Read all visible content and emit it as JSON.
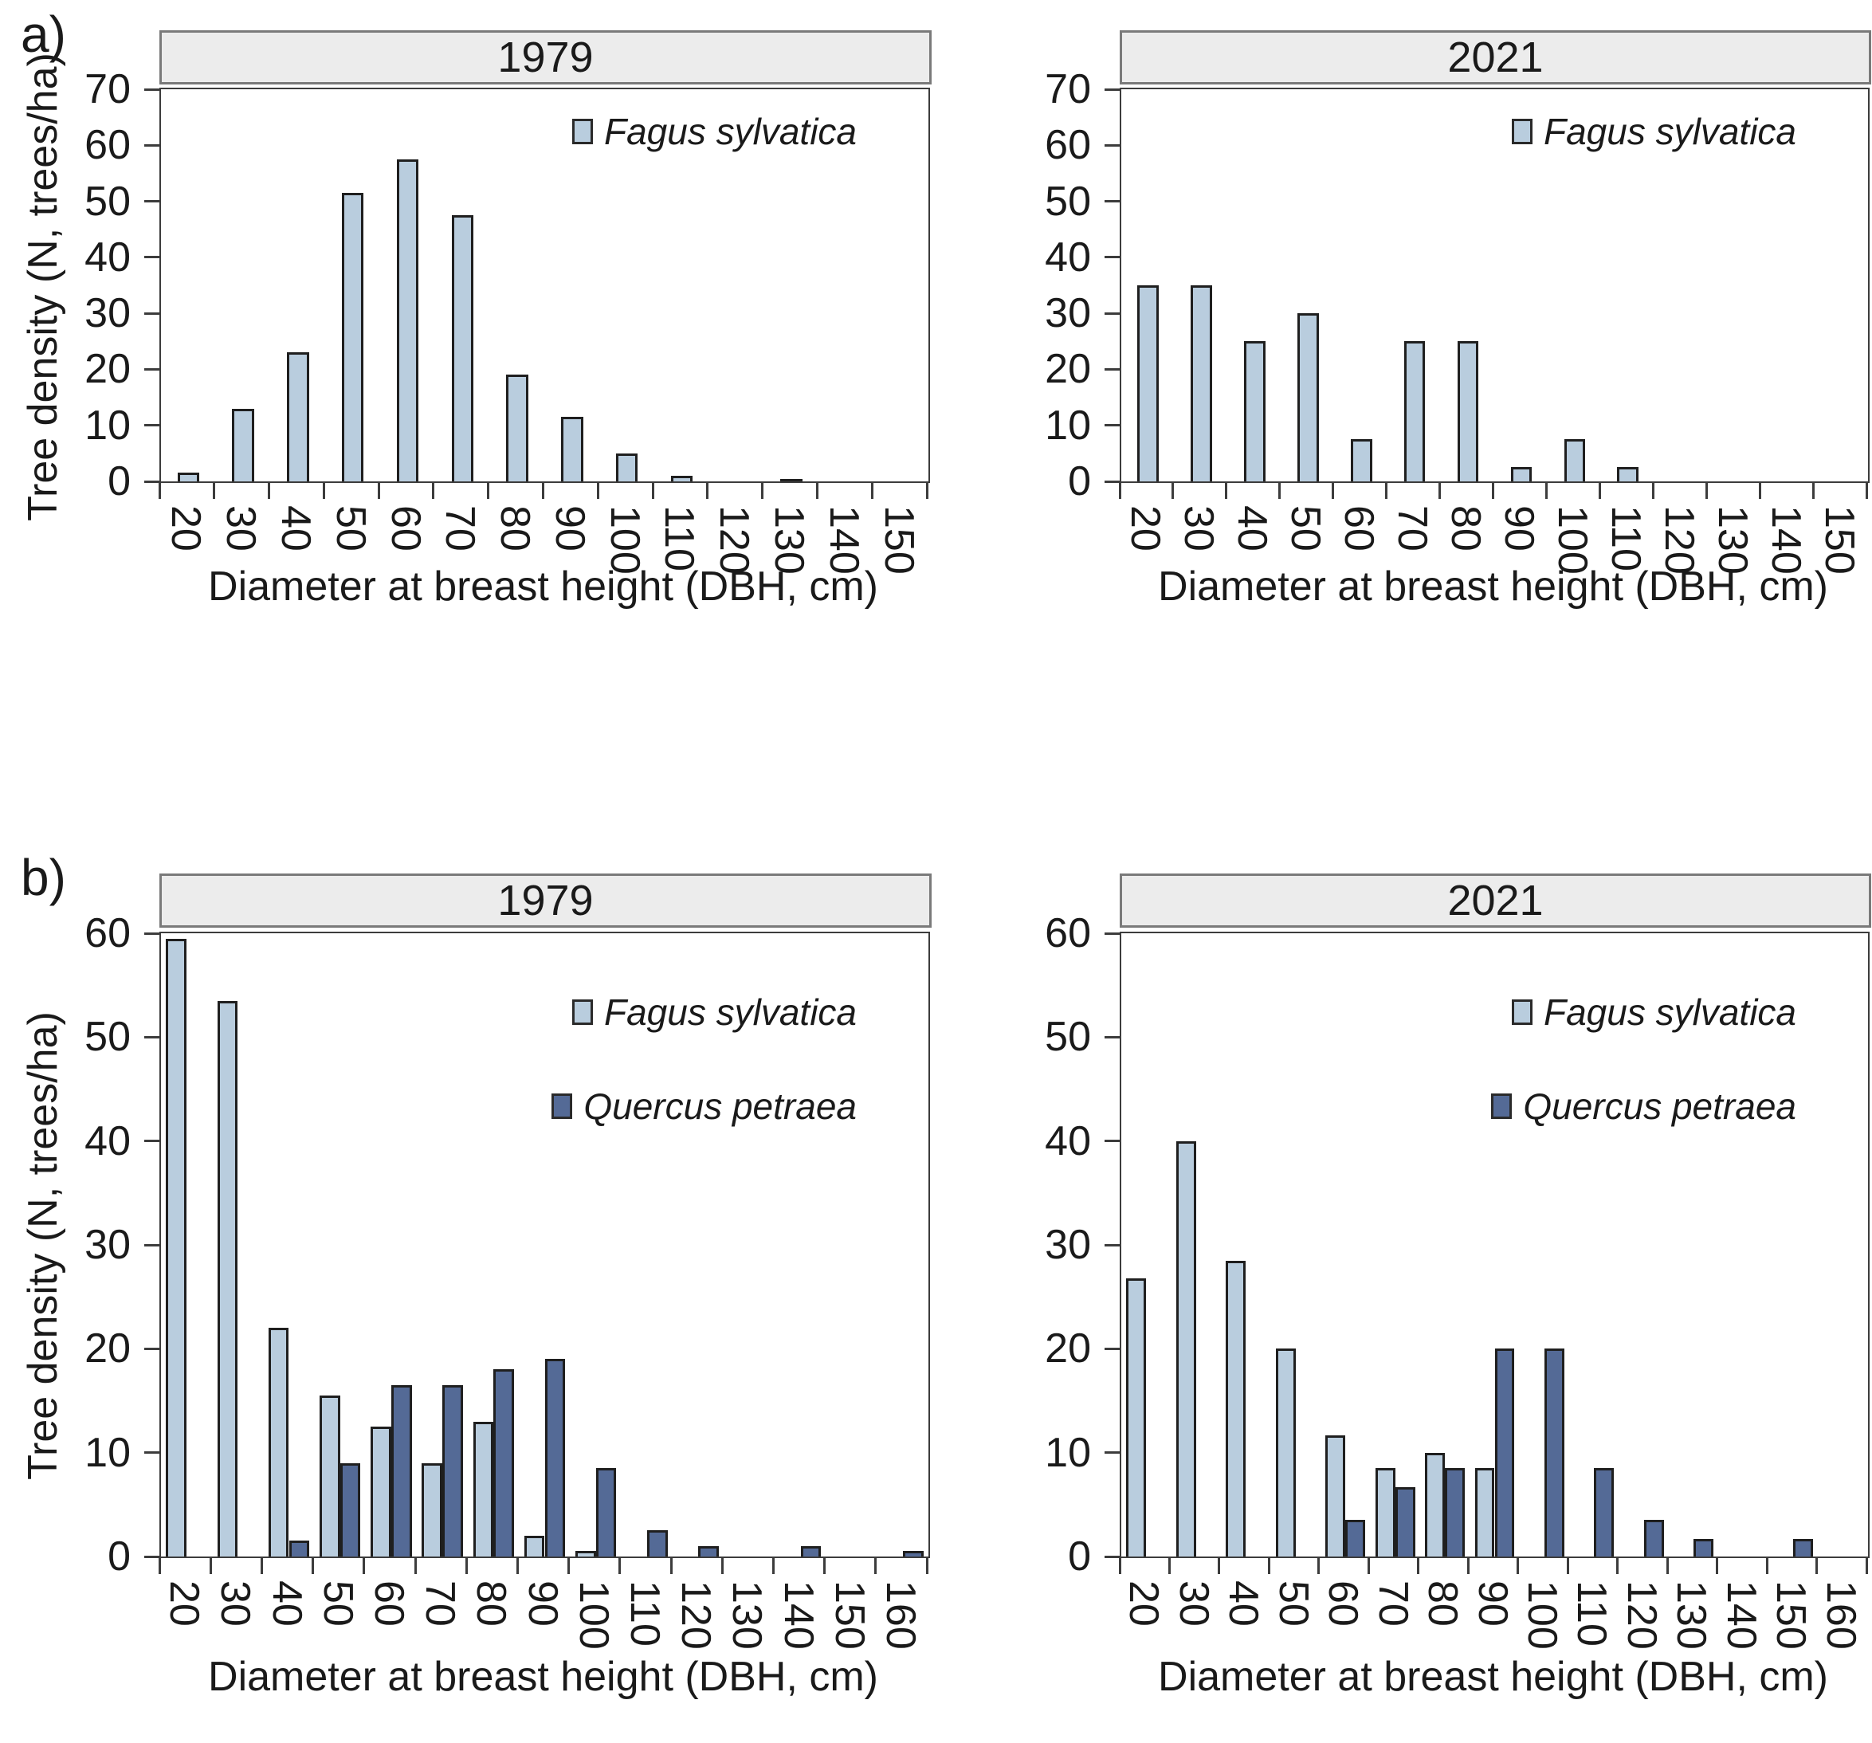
{
  "figure": {
    "row_a_label": "a)",
    "row_b_label": "b)",
    "y_axis_title": "Tree density (N, trees/ha)",
    "x_axis_title": "Diameter at breast height (DBH, cm)"
  },
  "colors": {
    "fagus_fill": "#b9cdde",
    "quercus_fill": "#546a96",
    "bar_border": "#1f1f1f",
    "band_fill": "#ececec",
    "band_border": "#7a7a7a",
    "plot_border": "#3c3c3c",
    "text": "#1a1a1a"
  },
  "chart_data": [
    {
      "id": "a-1979",
      "type": "bar",
      "panel_row": "a",
      "title": "1979",
      "ylabel": "Tree density (N, trees/ha)",
      "xlabel": "Diameter at breast height (DBH, cm)",
      "ylim": [
        0,
        70
      ],
      "ytick_step": 10,
      "grid": false,
      "legend_position": "top-right",
      "categories": [
        "20",
        "30",
        "40",
        "50",
        "60",
        "70",
        "80",
        "90",
        "100",
        "110",
        "120",
        "130",
        "140",
        "150"
      ],
      "series": [
        {
          "name": "Fagus sylvatica",
          "color_key": "fagus_fill",
          "values": [
            1.5,
            13,
            23,
            51.5,
            57.5,
            47.5,
            19,
            11.5,
            5,
            1,
            0,
            0.5,
            0,
            0
          ]
        }
      ]
    },
    {
      "id": "a-2021",
      "type": "bar",
      "panel_row": "a",
      "title": "2021",
      "ylabel": "Tree density (N, trees/ha)",
      "xlabel": "Diameter at breast height (DBH, cm)",
      "ylim": [
        0,
        70
      ],
      "ytick_step": 10,
      "grid": false,
      "legend_position": "top-right",
      "categories": [
        "20",
        "30",
        "40",
        "50",
        "60",
        "70",
        "80",
        "90",
        "100",
        "110",
        "120",
        "130",
        "140",
        "150"
      ],
      "series": [
        {
          "name": "Fagus sylvatica",
          "color_key": "fagus_fill",
          "values": [
            35,
            35,
            25,
            30,
            7.5,
            25,
            25,
            2.5,
            7.5,
            2.5,
            0,
            0,
            0,
            0
          ]
        }
      ]
    },
    {
      "id": "b-1979",
      "type": "bar",
      "panel_row": "b",
      "title": "1979",
      "ylabel": "Tree density (N, trees/ha)",
      "xlabel": "Diameter at breast height (DBH, cm)",
      "ylim": [
        0,
        60
      ],
      "ytick_step": 10,
      "grid": false,
      "legend_position": "top-right",
      "categories": [
        "20",
        "30",
        "40",
        "50",
        "60",
        "70",
        "80",
        "90",
        "100",
        "110",
        "120",
        "130",
        "140",
        "150",
        "160"
      ],
      "series": [
        {
          "name": "Fagus sylvatica",
          "color_key": "fagus_fill",
          "values": [
            59.5,
            53.5,
            22,
            15.5,
            12.5,
            9,
            13,
            2,
            0.5,
            0,
            0,
            0,
            0,
            0,
            0
          ]
        },
        {
          "name": "Quercus petraea",
          "color_key": "quercus_fill",
          "values": [
            0,
            0,
            1.5,
            9,
            16.5,
            16.5,
            18,
            19,
            8.5,
            2.5,
            1,
            0,
            1,
            0,
            0.5
          ]
        }
      ]
    },
    {
      "id": "b-2021",
      "type": "bar",
      "panel_row": "b",
      "title": "2021",
      "ylabel": "Tree density (N, trees/ha)",
      "xlabel": "Diameter at breast height (DBH, cm)",
      "ylim": [
        0,
        60
      ],
      "ytick_step": 10,
      "grid": false,
      "legend_position": "top-right",
      "categories": [
        "20",
        "30",
        "40",
        "50",
        "60",
        "70",
        "80",
        "90",
        "100",
        "110",
        "120",
        "130",
        "140",
        "150",
        "160"
      ],
      "series": [
        {
          "name": "Fagus sylvatica",
          "color_key": "fagus_fill",
          "values": [
            26.8,
            40,
            28.5,
            20,
            11.7,
            8.5,
            10,
            8.5,
            0,
            0,
            0,
            0,
            0,
            0,
            0
          ]
        },
        {
          "name": "Quercus petraea",
          "color_key": "quercus_fill",
          "values": [
            0,
            0,
            0,
            0,
            3.5,
            6.7,
            8.5,
            20,
            20,
            8.5,
            3.5,
            1.7,
            0,
            1.7,
            0
          ]
        }
      ]
    }
  ]
}
